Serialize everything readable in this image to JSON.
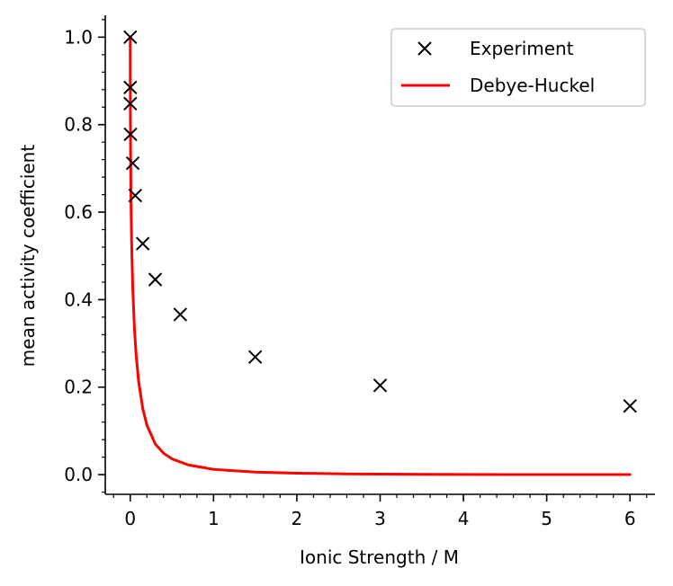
{
  "chart_data": {
    "type": "scatter",
    "xlabel": "Ionic Strength / M",
    "ylabel": "mean activity coefficient",
    "xlim": [
      -0.3,
      6.3
    ],
    "ylim": [
      -0.045,
      1.05
    ],
    "x_ticks": [
      0,
      1,
      2,
      3,
      4,
      5,
      6
    ],
    "y_ticks": [
      0.0,
      0.2,
      0.4,
      0.6,
      0.8,
      1.0
    ],
    "x_tick_labels": [
      "0",
      "1",
      "2",
      "3",
      "4",
      "5",
      "6"
    ],
    "y_tick_labels": [
      "0.0",
      "0.2",
      "0.4",
      "0.6",
      "0.8",
      "1.0"
    ],
    "grid": false,
    "legend_position": "top-right",
    "series": [
      {
        "name": "Experiment",
        "kind": "marker",
        "marker": "x",
        "color": "#000000",
        "x": [
          0.0,
          0.0003,
          0.0006,
          0.003,
          0.03,
          0.06,
          0.15,
          0.3,
          0.6,
          1.5,
          3.0,
          6.0
        ],
        "y": [
          1.0,
          0.885,
          0.848,
          0.778,
          0.712,
          0.638,
          0.528,
          0.446,
          0.366,
          0.269,
          0.204,
          0.157
        ]
      },
      {
        "name": "Debye-Huckel",
        "kind": "line",
        "color": "#ff0000",
        "x": [
          0.0,
          0.0005,
          0.001,
          0.002,
          0.004,
          0.007,
          0.01,
          0.015,
          0.02,
          0.03,
          0.05,
          0.07,
          0.1,
          0.15,
          0.2,
          0.3,
          0.4,
          0.5,
          0.7,
          1.0,
          1.5,
          2.0,
          2.5,
          3.0,
          3.5,
          4.0,
          4.5,
          5.0,
          5.5,
          6.0
        ],
        "y": [
          1.0,
          0.896,
          0.857,
          0.803,
          0.733,
          0.663,
          0.611,
          0.548,
          0.5,
          0.428,
          0.335,
          0.275,
          0.214,
          0.151,
          0.113,
          0.07,
          0.049,
          0.036,
          0.022,
          0.012,
          0.0058,
          0.0032,
          0.0019,
          0.0012,
          0.00075,
          0.0005,
          0.00033,
          0.00022,
          0.00015,
          0.0001
        ]
      }
    ]
  }
}
